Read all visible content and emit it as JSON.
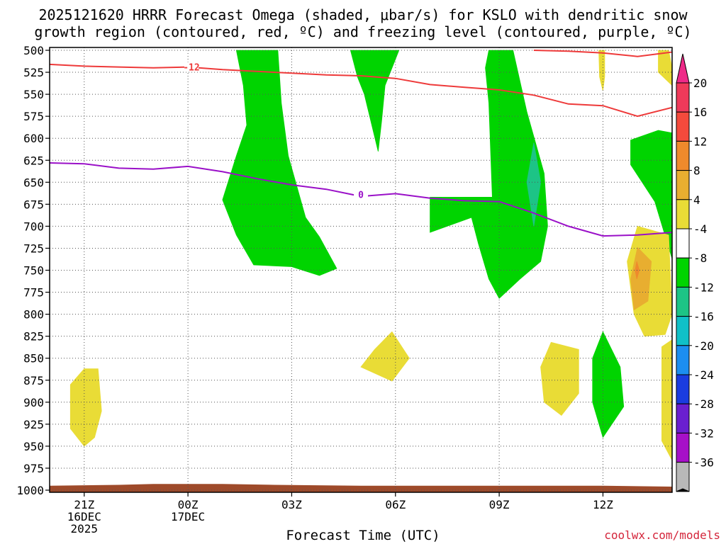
{
  "title_line_1": "2025121620 HRRR Forecast Omega (shaded, μbar/s) for KSLO with dendritic snow",
  "title_line_2": "growth region (contoured, red, ºC) and freezing level (contoured, purple, ºC)",
  "credit": "coolwx.com/models",
  "chart_data": {
    "type": "heatmap",
    "title": "2025121620 HRRR Forecast Omega (shaded, μbar/s) for KSLO with dendritic snow growth region (contoured, red, ºC) and freezing level (contoured, purple, ºC)",
    "xlabel": "Forecast Time (UTC)",
    "ylabel": "",
    "x_range_hours": [
      -1,
      17
    ],
    "y_range_hpa": [
      1000,
      500
    ],
    "y_ticks": [
      "500",
      "525",
      "550",
      "575",
      "600",
      "625",
      "650",
      "675",
      "700",
      "725",
      "750",
      "775",
      "800",
      "825",
      "850",
      "875",
      "900",
      "925",
      "950",
      "975",
      "1000"
    ],
    "x_ticks": [
      {
        "hour": 0,
        "line1": "21Z",
        "line2": "16DEC",
        "line3": "2025"
      },
      {
        "hour": 3,
        "line1": "00Z",
        "line2": "17DEC",
        "line3": ""
      },
      {
        "hour": 6,
        "line1": "03Z",
        "line2": "",
        "line3": ""
      },
      {
        "hour": 9,
        "line1": "06Z",
        "line2": "",
        "line3": ""
      },
      {
        "hour": 12,
        "line1": "09Z",
        "line2": "",
        "line3": ""
      },
      {
        "hour": 15,
        "line1": "12Z",
        "line2": "",
        "line3": ""
      }
    ],
    "colorbar": {
      "labels": [
        "20",
        "16",
        "12",
        "8",
        "4",
        "-4",
        "-8",
        "-12",
        "-16",
        "-20",
        "-24",
        "-28",
        "-32",
        "-36"
      ],
      "colors": [
        "#ef3a5a",
        "#f44a3c",
        "#ef8a2c",
        "#e8ae30",
        "#e9dc36",
        "#ffffff",
        "#00d400",
        "#1dc486",
        "#10c0c8",
        "#1c8ef0",
        "#1a3ce0",
        "#6a1fd0",
        "#a610c8",
        "#b8b8b8"
      ],
      "top_color": "#ee2a88",
      "bottom_color": "#000000"
    },
    "contours": {
      "dgz_red": {
        "label": "-12",
        "color": "#ee3a3a",
        "points_a": [
          [
            -1,
            516
          ],
          [
            0,
            518
          ],
          [
            1,
            519
          ],
          [
            2,
            520
          ],
          [
            3,
            519
          ],
          [
            4,
            522
          ],
          [
            5,
            524
          ],
          [
            6,
            526
          ],
          [
            7,
            528
          ],
          [
            8,
            529
          ],
          [
            9,
            532
          ],
          [
            10,
            539
          ],
          [
            11,
            542
          ],
          [
            12,
            545
          ],
          [
            13,
            551
          ],
          [
            14,
            561
          ],
          [
            15,
            563
          ],
          [
            16,
            575
          ],
          [
            17,
            565
          ]
        ],
        "points_b": [
          [
            13,
            500
          ],
          [
            14,
            501
          ],
          [
            15,
            503
          ],
          [
            16,
            507
          ],
          [
            17,
            502
          ]
        ]
      },
      "freezing_purple": {
        "label": "0",
        "color": "#9a10c8",
        "points": [
          [
            -1,
            628
          ],
          [
            0,
            629
          ],
          [
            1,
            634
          ],
          [
            2,
            635
          ],
          [
            3,
            632
          ],
          [
            4,
            638
          ],
          [
            5,
            646
          ],
          [
            6,
            653
          ],
          [
            7,
            658
          ],
          [
            8,
            666
          ],
          [
            9,
            663
          ],
          [
            10,
            668
          ],
          [
            11,
            671
          ],
          [
            12,
            672
          ],
          [
            13,
            685
          ],
          [
            14,
            700
          ],
          [
            15,
            711
          ],
          [
            16,
            710
          ],
          [
            17,
            707
          ]
        ]
      }
    },
    "shaded_regions": [
      {
        "value": -6,
        "color": "#00d400",
        "poly": [
          [
            4.4,
            500
          ],
          [
            5.6,
            500
          ],
          [
            5.7,
            560
          ],
          [
            5.9,
            620
          ],
          [
            6.4,
            690
          ],
          [
            6.8,
            712
          ],
          [
            7.3,
            748
          ],
          [
            6.8,
            756
          ],
          [
            6,
            746
          ],
          [
            4.9,
            744
          ],
          [
            4.4,
            710
          ],
          [
            4,
            670
          ],
          [
            4.4,
            620
          ],
          [
            4.7,
            585
          ],
          [
            4.6,
            540
          ]
        ]
      },
      {
        "value": -6,
        "color": "#00d400",
        "poly": [
          [
            7.7,
            500
          ],
          [
            9.1,
            500
          ],
          [
            8.7,
            540
          ],
          [
            8.6,
            580
          ],
          [
            8.5,
            615
          ],
          [
            8.1,
            550
          ],
          [
            7.9,
            530
          ]
        ]
      },
      {
        "value": -6,
        "color": "#00d400",
        "poly": [
          [
            11.7,
            500
          ],
          [
            12.4,
            500
          ],
          [
            12.8,
            570
          ],
          [
            13.3,
            640
          ],
          [
            13.4,
            700
          ],
          [
            13.2,
            740
          ],
          [
            12.6,
            760
          ],
          [
            12,
            782
          ],
          [
            11.7,
            760
          ],
          [
            11.4,
            720
          ],
          [
            11.2,
            690
          ],
          [
            10,
            707
          ],
          [
            10,
            667
          ],
          [
            11.8,
            667
          ],
          [
            11.7,
            560
          ],
          [
            11.6,
            520
          ]
        ]
      },
      {
        "value": -10,
        "color": "#1dc486",
        "poly": [
          [
            13.0,
            605
          ],
          [
            13.2,
            650
          ],
          [
            13.0,
            700
          ],
          [
            12.8,
            650
          ]
        ]
      },
      {
        "value": -6,
        "color": "#00d400",
        "poly": [
          [
            15.8,
            602
          ],
          [
            16.6,
            591
          ],
          [
            17,
            594
          ],
          [
            17,
            737
          ],
          [
            16.5,
            672
          ],
          [
            15.8,
            630
          ]
        ]
      },
      {
        "value": -6,
        "color": "#00d400",
        "poly": [
          [
            15,
            820
          ],
          [
            15.5,
            860
          ],
          [
            15.6,
            905
          ],
          [
            15,
            940
          ],
          [
            14.7,
            900
          ],
          [
            14.7,
            850
          ]
        ]
      },
      {
        "value": 6,
        "color": "#e9dc36",
        "poly": [
          [
            0,
            862
          ],
          [
            0.4,
            862
          ],
          [
            0.5,
            910
          ],
          [
            0.3,
            940
          ],
          [
            0,
            950
          ],
          [
            -0.4,
            930
          ],
          [
            -0.4,
            880
          ]
        ]
      },
      {
        "value": 6,
        "color": "#e9dc36",
        "poly": [
          [
            8.9,
            820
          ],
          [
            8.4,
            840
          ],
          [
            8.0,
            860
          ],
          [
            8.9,
            876
          ],
          [
            9.4,
            850
          ]
        ]
      },
      {
        "value": 6,
        "color": "#e9dc36",
        "poly": [
          [
            13.5,
            832
          ],
          [
            14.3,
            840
          ],
          [
            14.3,
            890
          ],
          [
            13.8,
            915
          ],
          [
            13.3,
            900
          ],
          [
            13.2,
            860
          ]
        ]
      },
      {
        "value": 6,
        "color": "#e9dc36",
        "poly": [
          [
            16,
            700
          ],
          [
            16.9,
            710
          ],
          [
            17,
            800
          ],
          [
            16.8,
            823
          ],
          [
            16.2,
            825
          ],
          [
            15.9,
            800
          ],
          [
            15.7,
            740
          ]
        ]
      },
      {
        "value": 10,
        "color": "#e8ae30",
        "poly": [
          [
            16,
            724
          ],
          [
            16.4,
            740
          ],
          [
            16.3,
            785
          ],
          [
            15.9,
            795
          ],
          [
            15.8,
            760
          ]
        ]
      },
      {
        "value": 14,
        "color": "#ef8a2c",
        "poly": [
          [
            15.98,
            740
          ],
          [
            16.05,
            750
          ],
          [
            15.98,
            760
          ],
          [
            15.93,
            750
          ]
        ]
      },
      {
        "value": 6,
        "color": "#e9dc36",
        "poly": [
          [
            14.88,
            500
          ],
          [
            15.05,
            500
          ],
          [
            15.05,
            530
          ],
          [
            15,
            546
          ],
          [
            14.9,
            530
          ]
        ]
      },
      {
        "value": 6,
        "color": "#e9dc36",
        "poly": [
          [
            16.6,
            500
          ],
          [
            16.9,
            500
          ],
          [
            17,
            520
          ],
          [
            17,
            540
          ],
          [
            16.6,
            525
          ]
        ]
      },
      {
        "value": 6,
        "color": "#e9dc36",
        "poly": [
          [
            16.7,
            837
          ],
          [
            17,
            829
          ],
          [
            17,
            966
          ],
          [
            16.7,
            944
          ]
        ]
      }
    ],
    "terrain": {
      "color": "#9e4a2a",
      "surface_hpa": [
        [
          -1,
          995
        ],
        [
          1,
          994
        ],
        [
          2,
          993
        ],
        [
          4,
          993
        ],
        [
          5.5,
          994
        ],
        [
          8,
          995
        ],
        [
          15,
          995
        ],
        [
          17,
          996
        ]
      ]
    }
  }
}
